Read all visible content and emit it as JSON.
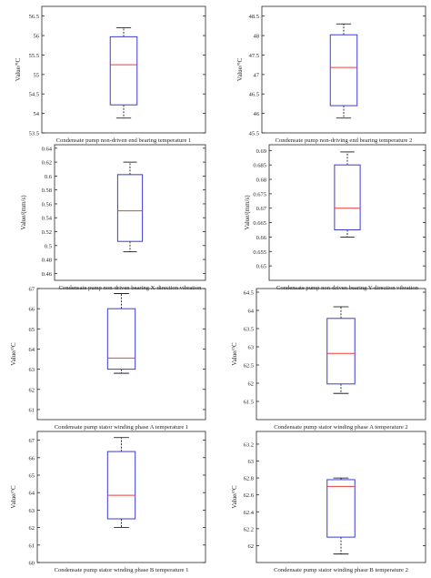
{
  "chart_data": [
    {
      "type": "box",
      "title": "Condensate pump non-driven end bearing temperature 1",
      "ylabel": "Value/°C",
      "ylim": [
        53.5,
        56.75
      ],
      "yticks": [
        53.5,
        54,
        54.5,
        55,
        55.5,
        56,
        56.5
      ],
      "ytick_labels": [
        "53.5",
        "54",
        "54.5",
        "55",
        "55.5",
        "56",
        "56.5"
      ],
      "box": {
        "whisker_low": 53.88,
        "q1": 54.22,
        "median": 55.25,
        "q3": 55.97,
        "whisker_high": 56.2
      }
    },
    {
      "type": "box",
      "title": "Condensate pump non-driving end bearing temperature 2",
      "ylabel": "Value/°C",
      "ylim": [
        45.5,
        48.75
      ],
      "yticks": [
        45.5,
        46,
        46.5,
        47,
        47.5,
        48,
        48.5
      ],
      "ytick_labels": [
        "45.5",
        "46",
        "46.5",
        "47",
        "47.5",
        "48",
        "48.5"
      ],
      "box": {
        "whisker_low": 45.88,
        "q1": 46.2,
        "median": 47.18,
        "q3": 48.02,
        "whisker_high": 48.3
      }
    },
    {
      "type": "box",
      "title": "Condensate pump non-driven bearing X-direction vibration",
      "ylabel": "Value/(mm/s)",
      "ylim": [
        0.45,
        0.645
      ],
      "yticks": [
        0.46,
        0.48,
        0.5,
        0.52,
        0.54,
        0.56,
        0.58,
        0.6,
        0.62,
        0.64
      ],
      "ytick_labels": [
        "0.46",
        "0.48",
        "0.5",
        "0.52",
        "0.54",
        "0.56",
        "0.58",
        "0.6",
        "0.62",
        "0.64"
      ],
      "box": {
        "whisker_low": 0.491,
        "q1": 0.506,
        "median": 0.55,
        "q3": 0.602,
        "whisker_high": 0.62
      }
    },
    {
      "type": "box",
      "title": "Condensate pump non-driven bearing Y-direction vibration",
      "ylabel": "Value/(mm/s)",
      "ylim": [
        0.645,
        0.692
      ],
      "yticks": [
        0.65,
        0.655,
        0.66,
        0.665,
        0.67,
        0.675,
        0.68,
        0.685,
        0.69
      ],
      "ytick_labels": [
        "0.65",
        "0.655",
        "0.66",
        "0.665",
        "0.67",
        "0.675",
        "0.68",
        "0.685",
        "0.69"
      ],
      "box": {
        "whisker_low": 0.66,
        "q1": 0.6625,
        "median": 0.67,
        "q3": 0.685,
        "whisker_high": 0.6895
      }
    },
    {
      "type": "box",
      "title": "Condensate pump stator winding phase A temperature 1",
      "ylabel": "Value/°C",
      "ylim": [
        60.5,
        67
      ],
      "yticks": [
        61,
        62,
        63,
        64,
        65,
        66,
        67
      ],
      "ytick_labels": [
        "61",
        "62",
        "63",
        "64",
        "65",
        "66",
        "67"
      ],
      "box": {
        "whisker_low": 62.8,
        "q1": 63.0,
        "median": 63.55,
        "q3": 66.0,
        "whisker_high": 66.75
      }
    },
    {
      "type": "box",
      "title": "Condensate pump stator winding phase A temperature 2",
      "ylabel": "Value/°C",
      "ylim": [
        61.0,
        64.6
      ],
      "yticks": [
        61.5,
        62,
        62.5,
        63,
        63.5,
        64,
        64.5
      ],
      "ytick_labels": [
        "61.5",
        "62",
        "62.5",
        "63",
        "63.5",
        "64",
        "64.5"
      ],
      "box": {
        "whisker_low": 61.72,
        "q1": 61.98,
        "median": 62.82,
        "q3": 63.78,
        "whisker_high": 64.1
      }
    },
    {
      "type": "box",
      "title": "Condensate pump stator winding phase B temperature 1",
      "ylabel": "Value/°C",
      "ylim": [
        60,
        67.5
      ],
      "yticks": [
        60,
        61,
        62,
        63,
        64,
        65,
        66,
        67
      ],
      "ytick_labels": [
        "60",
        "61",
        "62",
        "63",
        "64",
        "65",
        "66",
        "67"
      ],
      "box": {
        "whisker_low": 62.0,
        "q1": 62.5,
        "median": 63.85,
        "q3": 66.35,
        "whisker_high": 67.15
      }
    },
    {
      "type": "box",
      "title": "Condensate pump stator winding phase B temperature 2",
      "ylabel": "Value/°C",
      "ylim": [
        61.8,
        63.35
      ],
      "yticks": [
        62,
        62.2,
        62.4,
        62.6,
        62.8,
        63,
        63.2
      ],
      "ytick_labels": [
        "62",
        "62.2",
        "62.4",
        "62.6",
        "62.8",
        "63",
        "63.2"
      ],
      "box": {
        "whisker_low": 61.9,
        "q1": 62.1,
        "median": 62.7,
        "q3": 62.78,
        "whisker_high": 62.8
      }
    }
  ]
}
